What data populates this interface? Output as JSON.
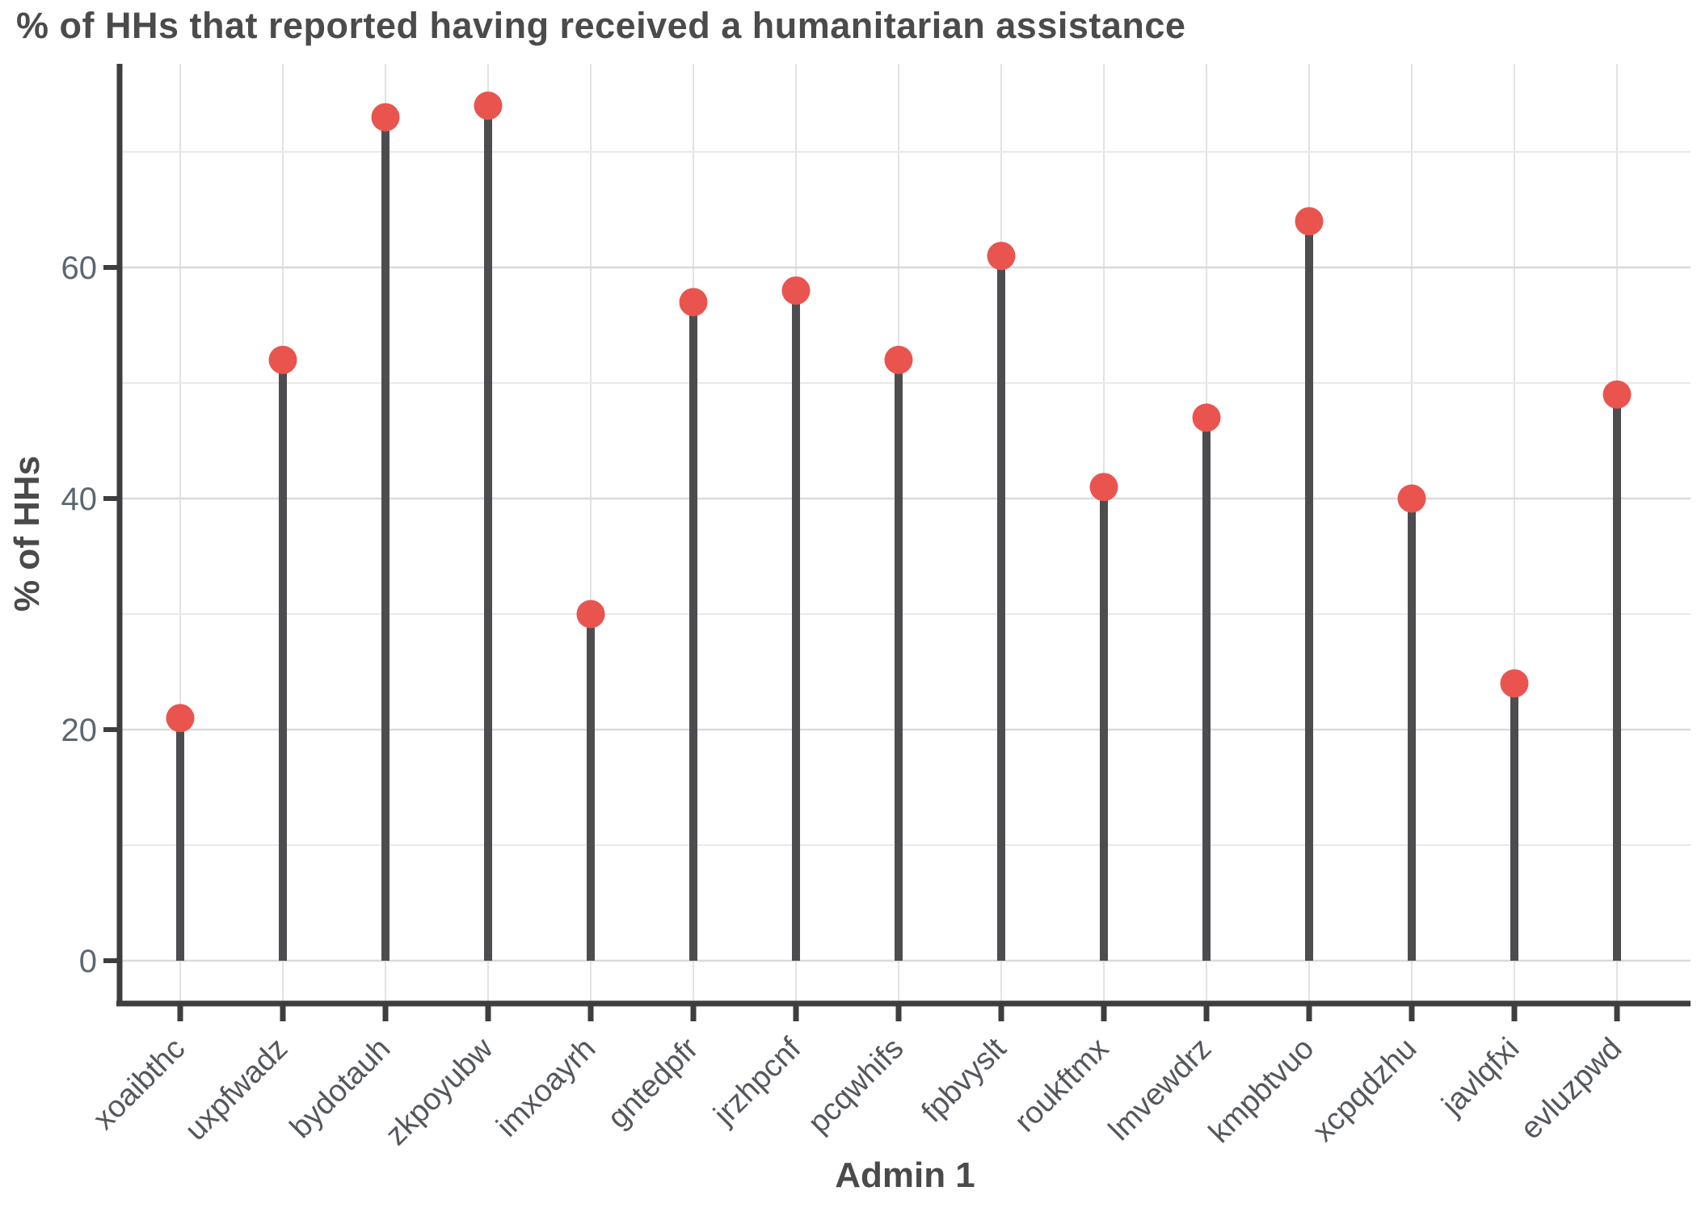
{
  "title": "% of HHs that reported having received a humanitarian assistance",
  "chart_data": {
    "type": "lollipop",
    "title": "% of HHs that reported having received a humanitarian assistance",
    "xlabel": "Admin 1",
    "ylabel": "% of HHs",
    "categories": [
      "xoaibthc",
      "uxpfwadz",
      "bydotauh",
      "zkpoyubw",
      "imxoayrh",
      "gntedpfr",
      "jrzhpcnf",
      "pcqwhifs",
      "fpbvyslt",
      "roukftmx",
      "lmvewdrz",
      "kmpbtvuo",
      "xcpqdzhu",
      "javlqfxi",
      "evluzpwd"
    ],
    "values": [
      21,
      52,
      73,
      74,
      30,
      57,
      58,
      52,
      61,
      41,
      47,
      64,
      40,
      24,
      49
    ],
    "ylim": [
      0,
      77
    ],
    "yticks_major": [
      0,
      20,
      40,
      60
    ],
    "yticks_minor": [
      10,
      30,
      50,
      70
    ],
    "grid": "on",
    "legend": "none"
  },
  "colors": {
    "point": "#E9544F",
    "stem": "#4D4D50",
    "axis_line": "#3E3E40",
    "grid_major": "#DADADA",
    "grid_minor": "#E9E9E9",
    "grid_vertical": "#E3E3E3",
    "title_text": "#4B4B4B",
    "axis_title_text": "#4A4A4A",
    "y_tick_label_text": "#5C6670",
    "x_tick_label_text": "#54575C",
    "background": "#FFFFFF"
  }
}
